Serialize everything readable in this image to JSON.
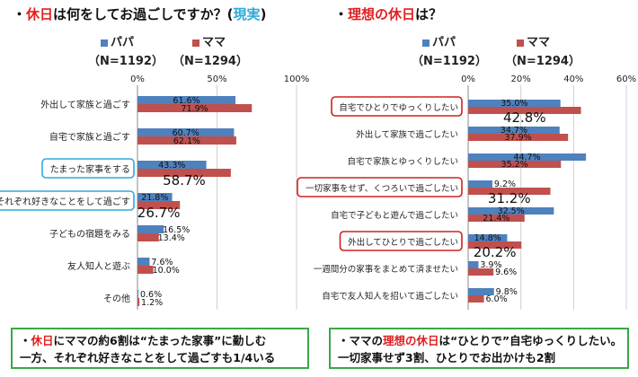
{
  "left": {
    "title_prefix": "・",
    "title_red": "休日",
    "title_mid": "は何をしてお過ごしですか？(",
    "title_cyan": "現実",
    "title_end": ")",
    "legend": {
      "papa": "パパ",
      "mama": "ママ",
      "papa_n": "（N=1192）",
      "mama_n": "（N=1294）"
    },
    "note": {
      "line1_prefix": "・",
      "line1_red": "休日",
      "line1_rest": "にママの約6割は“たまった家事”に勤しむ",
      "line2": "一方、それぞれ好きなことをして過ごすも1/4いる"
    }
  },
  "right": {
    "title_prefix": "・",
    "title_red": "理想の休日",
    "title_end": "は？",
    "legend": {
      "papa": "パパ",
      "mama": "ママ",
      "papa_n": "（N=1192）",
      "mama_n": "（N=1294）"
    },
    "note": {
      "line1_prefix": "・ママの",
      "line1_red": "理想の休日",
      "line1_rest": "は“ひとりで”自宅ゆっくりしたい。",
      "line2": "一切家事せず3割、ひとりでお出かけも2割"
    }
  },
  "colors": {
    "papa": "#4f81bd",
    "mama": "#c0504d",
    "highlight_left": "#30a8d8",
    "highlight_right": "#d02020",
    "note_border": "#3aa846"
  },
  "chart_data": [
    {
      "type": "bar",
      "orientation": "horizontal",
      "xlim": [
        0,
        100
      ],
      "ticks": [
        "0%",
        "50%",
        "100%"
      ],
      "tick_values": [
        0,
        50,
        100
      ],
      "grid": true,
      "categories": [
        "外出して家族と過ごす",
        "自宅で家族と過ごす",
        "たまった家事をする",
        "それぞれ好きなことをして過ごす",
        "子どもの宿題をみる",
        "友人知人と遊ぶ",
        "その他"
      ],
      "highlighted": [
        false,
        false,
        true,
        true,
        false,
        false,
        false
      ],
      "series": [
        {
          "name": "パパ",
          "values": [
            61.6,
            60.7,
            43.3,
            21.8,
            16.5,
            7.6,
            0.6
          ],
          "labels": [
            "61.6%",
            "60.7%",
            "43.3%",
            "21.8%",
            "16.5%",
            "7.6%",
            "0.6%"
          ]
        },
        {
          "name": "ママ",
          "values": [
            71.9,
            62.1,
            58.7,
            26.7,
            13.4,
            10.0,
            1.2
          ],
          "labels": [
            "71.9%",
            "62.1%",
            "58.7%",
            "26.7%",
            "13.4%",
            "10.0%",
            "1.2%"
          ]
        }
      ]
    },
    {
      "type": "bar",
      "orientation": "horizontal",
      "xlim": [
        0,
        60
      ],
      "ticks": [
        "0%",
        "20%",
        "40%",
        "60%"
      ],
      "tick_values": [
        0,
        20,
        40,
        60
      ],
      "grid": true,
      "categories": [
        "自宅でひとりでゆっくりしたい",
        "外出して家族で過ごしたい",
        "自宅で家族とゆっくりしたい",
        "一切家事をせず、くつろいで過ごしたい",
        "自宅で子どもと遊んで過ごしたい",
        "外出してひとりで過ごしたい",
        "一週間分の家事をまとめて済ませたい",
        "自宅で友人知人を招いて過ごしたい"
      ],
      "highlighted": [
        true,
        false,
        false,
        true,
        false,
        true,
        false,
        false
      ],
      "series": [
        {
          "name": "パパ",
          "values": [
            35.0,
            34.7,
            44.7,
            9.2,
            32.5,
            14.8,
            3.9,
            9.8
          ],
          "labels": [
            "35.0%",
            "34.7%",
            "44.7%",
            "9.2%",
            "32.5%",
            "14.8%",
            "3.9%",
            "9.8%"
          ]
        },
        {
          "name": "ママ",
          "values": [
            42.8,
            37.9,
            35.2,
            31.2,
            21.4,
            20.2,
            9.6,
            6.0
          ],
          "labels": [
            "42.8%",
            "37.9%",
            "35.2%",
            "31.2%",
            "21.4%",
            "20.2%",
            "9.6%",
            "6.0%"
          ]
        }
      ]
    }
  ]
}
